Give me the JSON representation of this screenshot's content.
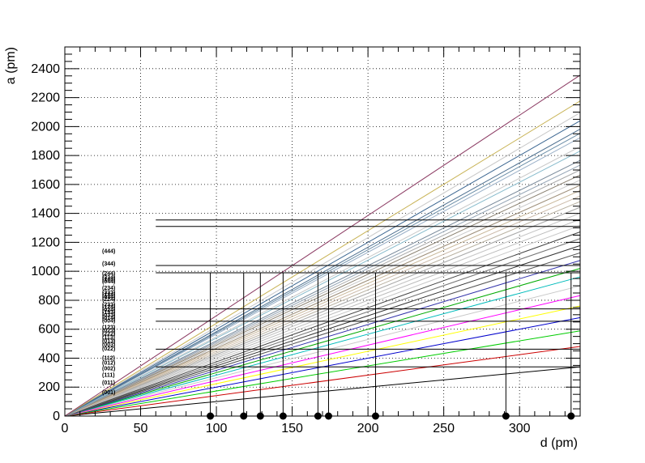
{
  "chart_data": {
    "type": "line",
    "xlabel": "d (pm)",
    "ylabel": "a (pm)",
    "xlim": [
      0,
      340
    ],
    "ylim": [
      0,
      2550
    ],
    "x_ticks": [
      "0",
      "50",
      "100",
      "150",
      "200",
      "250",
      "300"
    ],
    "y_ticks": [
      "0",
      "200",
      "400",
      "600",
      "800",
      "1000",
      "1200",
      "1400",
      "1600",
      "1800",
      "2000",
      "2200",
      "2400"
    ],
    "grid": true,
    "lines": [
      {
        "name": "(001)",
        "slope": 1.0,
        "color": "#000000"
      },
      {
        "name": "(011)",
        "slope": 1.414,
        "color": "#cc0000"
      },
      {
        "name": "(111)",
        "slope": 1.732,
        "color": "#00cc00"
      },
      {
        "name": "(002)",
        "slope": 2.0,
        "color": "#0000cc"
      },
      {
        "name": "(012)",
        "slope": 2.236,
        "color": "#ffff00"
      },
      {
        "name": "(112)",
        "slope": 2.449,
        "color": "#ff00ff"
      },
      {
        "name": "(022)",
        "slope": 2.828,
        "color": "#00bbbb"
      },
      {
        "name": "(003)",
        "slope": 3.0,
        "color": "#00aa00"
      },
      {
        "name": "(013)",
        "slope": 3.162,
        "color": "#3333aa"
      },
      {
        "name": "(113)",
        "slope": 3.317,
        "color": "#555555"
      },
      {
        "name": "(222)",
        "slope": 3.464,
        "color": "#333333"
      },
      {
        "name": "(023)",
        "slope": 3.606,
        "color": "#777777"
      },
      {
        "name": "(123)",
        "slope": 3.742,
        "color": "#444444"
      },
      {
        "name": "(004)",
        "slope": 4.0,
        "color": "#bbbbbb"
      },
      {
        "name": "(014)",
        "slope": 4.123,
        "color": "#c8c8c8"
      },
      {
        "name": "(033)",
        "slope": 4.243,
        "color": "#aaaaaa"
      },
      {
        "name": "(133)",
        "slope": 4.359,
        "color": "#b8b0a0"
      },
      {
        "name": "(024)",
        "slope": 4.472,
        "color": "#ccbbaa"
      },
      {
        "name": "(124)",
        "slope": 4.583,
        "color": "#c9b89a"
      },
      {
        "name": "(233)",
        "slope": 4.69,
        "color": "#a0907a"
      },
      {
        "name": "(224)",
        "slope": 4.899,
        "color": "#8a8070"
      },
      {
        "name": "(034)",
        "slope": 5.0,
        "color": "#a9a9a9"
      },
      {
        "name": "(134)",
        "slope": 5.099,
        "color": "#99aabb"
      },
      {
        "name": "(333)",
        "slope": 5.196,
        "color": "#778899"
      },
      {
        "name": "(234)",
        "slope": 5.385,
        "color": "#88bbcc"
      },
      {
        "name": "(044)",
        "slope": 5.657,
        "color": "#9ab0c8"
      },
      {
        "name": "(144)",
        "slope": 5.745,
        "color": "#6b8ea8"
      },
      {
        "name": "(334)",
        "slope": 5.831,
        "color": "#4e7090"
      },
      {
        "name": "(244)",
        "slope": 6.0,
        "color": "#3a6590"
      },
      {
        "name": "(344)",
        "slope": 6.403,
        "color": "#c9b458"
      },
      {
        "name": "(444)",
        "slope": 6.928,
        "color": "#8b3a62"
      }
    ],
    "extra_line_slopes": [
      2.645,
      3.873,
      4.123,
      4.242,
      4.69,
      5.099,
      5.477,
      6.164,
      3.316,
      3.605,
      4.795
    ],
    "horizontal_segments": [
      {
        "y": 340,
        "x_from": 60
      },
      {
        "y": 462,
        "x_from": 60
      },
      {
        "y": 655,
        "x_from": 60
      },
      {
        "y": 740,
        "x_from": 60
      },
      {
        "y": 990,
        "x_from": 60
      },
      {
        "y": 1040,
        "x_from": 60
      },
      {
        "y": 1310,
        "x_from": 60
      },
      {
        "y": 1355,
        "x_from": 60
      }
    ],
    "vertical_markers_y_top": 990,
    "vertical_markers_x": [
      96,
      118,
      129,
      144,
      167,
      174,
      205,
      291,
      334
    ]
  }
}
